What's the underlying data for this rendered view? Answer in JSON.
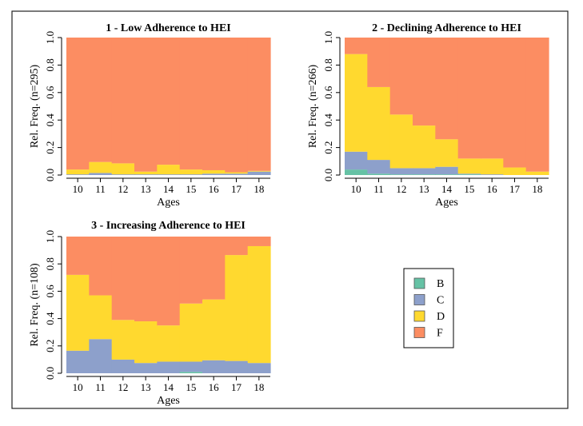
{
  "colors": {
    "B": "#66c2a5",
    "C": "#8da0cb",
    "D": "#ffd92f",
    "F": "#fc8d62"
  },
  "chart_data": [
    {
      "type": "area",
      "title": "1 - Low Adherence to HEI",
      "xlabel": "Ages",
      "ylabel": "Rel. Freq. (n=295)",
      "categories": [
        "10",
        "11",
        "12",
        "13",
        "14",
        "15",
        "16",
        "17",
        "18"
      ],
      "ylim": [
        0,
        1
      ],
      "yticks": [
        "0.0",
        "0.2",
        "0.4",
        "0.6",
        "0.8",
        "1.0"
      ],
      "series": [
        {
          "name": "B",
          "values": [
            0,
            0,
            0,
            0,
            0,
            0,
            0,
            0,
            0
          ]
        },
        {
          "name": "C",
          "values": [
            0.005,
            0.015,
            0.005,
            0.005,
            0.005,
            0.005,
            0.01,
            0.01,
            0.025
          ]
        },
        {
          "name": "D",
          "values": [
            0.035,
            0.08,
            0.08,
            0.02,
            0.07,
            0.035,
            0.025,
            0.01,
            0.005
          ]
        },
        {
          "name": "F",
          "values": [
            0.96,
            0.905,
            0.915,
            0.975,
            0.925,
            0.96,
            0.965,
            0.98,
            0.97
          ]
        }
      ]
    },
    {
      "type": "area",
      "title": "2 - Declining Adherence to HEI",
      "xlabel": "Ages",
      "ylabel": "Rel. Freq. (n=266)",
      "categories": [
        "10",
        "11",
        "12",
        "13",
        "14",
        "15",
        "16",
        "17",
        "18"
      ],
      "ylim": [
        0,
        1
      ],
      "yticks": [
        "0.0",
        "0.2",
        "0.4",
        "0.6",
        "0.8",
        "1.0"
      ],
      "series": [
        {
          "name": "B",
          "values": [
            0.04,
            0.01,
            0.005,
            0.005,
            0.005,
            0.005,
            0,
            0,
            0
          ]
        },
        {
          "name": "C",
          "values": [
            0.13,
            0.1,
            0.045,
            0.045,
            0.055,
            0.005,
            0.005,
            0,
            0
          ]
        },
        {
          "name": "D",
          "values": [
            0.71,
            0.53,
            0.39,
            0.31,
            0.2,
            0.11,
            0.115,
            0.055,
            0.025
          ]
        },
        {
          "name": "F",
          "values": [
            0.12,
            0.36,
            0.56,
            0.64,
            0.74,
            0.88,
            0.88,
            0.945,
            0.975
          ]
        }
      ]
    },
    {
      "type": "area",
      "title": "3 - Increasing Adherence to HEI",
      "xlabel": "Ages",
      "ylabel": "Rel. Freq. (n=108)",
      "categories": [
        "10",
        "11",
        "12",
        "13",
        "14",
        "15",
        "16",
        "17",
        "18"
      ],
      "ylim": [
        0,
        1
      ],
      "yticks": [
        "0.0",
        "0.2",
        "0.4",
        "0.6",
        "0.8",
        "1.0"
      ],
      "series": [
        {
          "name": "B",
          "values": [
            0,
            0,
            0,
            0,
            0,
            0.01,
            0,
            0,
            0
          ]
        },
        {
          "name": "C",
          "values": [
            0.165,
            0.25,
            0.1,
            0.075,
            0.085,
            0.075,
            0.095,
            0.09,
            0.075
          ]
        },
        {
          "name": "D",
          "values": [
            0.555,
            0.32,
            0.29,
            0.305,
            0.265,
            0.425,
            0.445,
            0.775,
            0.855
          ]
        },
        {
          "name": "F",
          "values": [
            0.28,
            0.43,
            0.61,
            0.62,
            0.65,
            0.49,
            0.46,
            0.135,
            0.07
          ]
        }
      ]
    }
  ],
  "legend": {
    "placement": "right",
    "items": [
      {
        "label": "B",
        "color": "#66c2a5"
      },
      {
        "label": "C",
        "color": "#8da0cb"
      },
      {
        "label": "D",
        "color": "#ffd92f"
      },
      {
        "label": "F",
        "color": "#fc8d62"
      }
    ]
  }
}
